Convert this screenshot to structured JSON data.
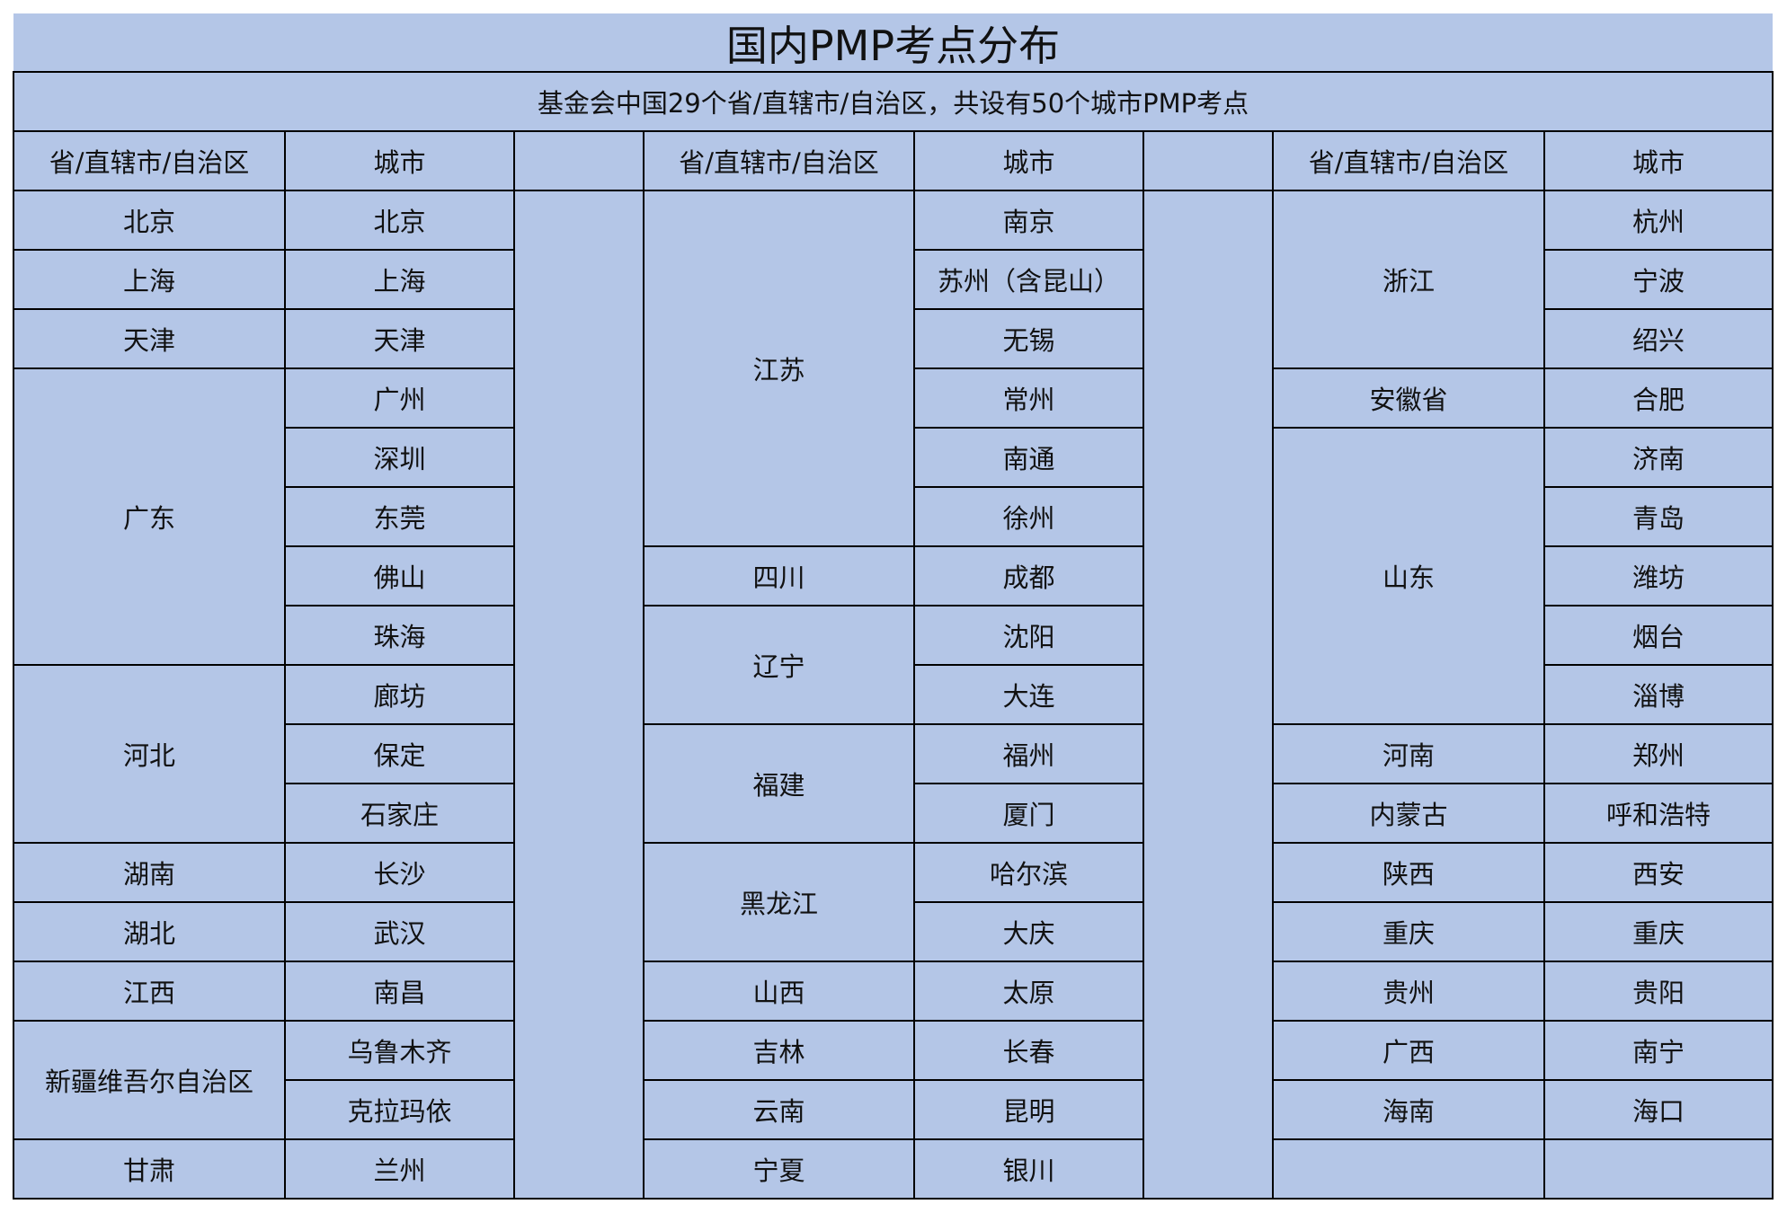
{
  "title": "国内PMP考点分布",
  "subtitle": "基金会中国29个省/直辖市/自治区，共设有50个城市PMP考点",
  "headers": {
    "province": "省/直辖市/自治区",
    "city": "城市"
  },
  "colors": {
    "fill": "#b4c6e7",
    "border": "#000000"
  },
  "groups": [
    [
      {
        "province": "北京",
        "cities": [
          "北京"
        ]
      },
      {
        "province": "上海",
        "cities": [
          "上海"
        ]
      },
      {
        "province": "天津",
        "cities": [
          "天津"
        ]
      },
      {
        "province": "广东",
        "cities": [
          "广州",
          "深圳",
          "东莞",
          "佛山",
          "珠海"
        ]
      },
      {
        "province": "河北",
        "cities": [
          "廊坊",
          "保定",
          "石家庄"
        ]
      },
      {
        "province": "湖南",
        "cities": [
          "长沙"
        ]
      },
      {
        "province": "湖北",
        "cities": [
          "武汉"
        ]
      },
      {
        "province": "江西",
        "cities": [
          "南昌"
        ]
      },
      {
        "province": "新疆维吾尔自治区",
        "cities": [
          "乌鲁木齐",
          "克拉玛依"
        ]
      },
      {
        "province": "甘肃",
        "cities": [
          "兰州"
        ]
      }
    ],
    [
      {
        "province": "江苏",
        "cities": [
          "南京",
          "苏州（含昆山）",
          "无锡",
          "常州",
          "南通",
          "徐州"
        ]
      },
      {
        "province": "四川",
        "cities": [
          "成都"
        ]
      },
      {
        "province": "辽宁",
        "cities": [
          "沈阳",
          "大连"
        ]
      },
      {
        "province": "福建",
        "cities": [
          "福州",
          "厦门"
        ]
      },
      {
        "province": "黑龙江",
        "cities": [
          "哈尔滨",
          "大庆"
        ]
      },
      {
        "province": "山西",
        "cities": [
          "太原"
        ]
      },
      {
        "province": "吉林",
        "cities": [
          "长春"
        ]
      },
      {
        "province": "云南",
        "cities": [
          "昆明"
        ]
      },
      {
        "province": "宁夏",
        "cities": [
          "银川"
        ]
      }
    ],
    [
      {
        "province": "浙江",
        "cities": [
          "杭州",
          "宁波",
          "绍兴"
        ]
      },
      {
        "province": "安徽省",
        "cities": [
          "合肥"
        ]
      },
      {
        "province": "山东",
        "cities": [
          "济南",
          "青岛",
          "潍坊",
          "烟台",
          "淄博"
        ]
      },
      {
        "province": "河南",
        "cities": [
          "郑州"
        ]
      },
      {
        "province": "内蒙古",
        "cities": [
          "呼和浩特"
        ]
      },
      {
        "province": "陕西",
        "cities": [
          "西安"
        ]
      },
      {
        "province": "重庆",
        "cities": [
          "重庆"
        ]
      },
      {
        "province": "贵州",
        "cities": [
          "贵阳"
        ]
      },
      {
        "province": "广西",
        "cities": [
          "南宁"
        ]
      },
      {
        "province": "海南",
        "cities": [
          "海口"
        ]
      },
      {
        "province": "",
        "cities": [
          ""
        ]
      }
    ]
  ]
}
